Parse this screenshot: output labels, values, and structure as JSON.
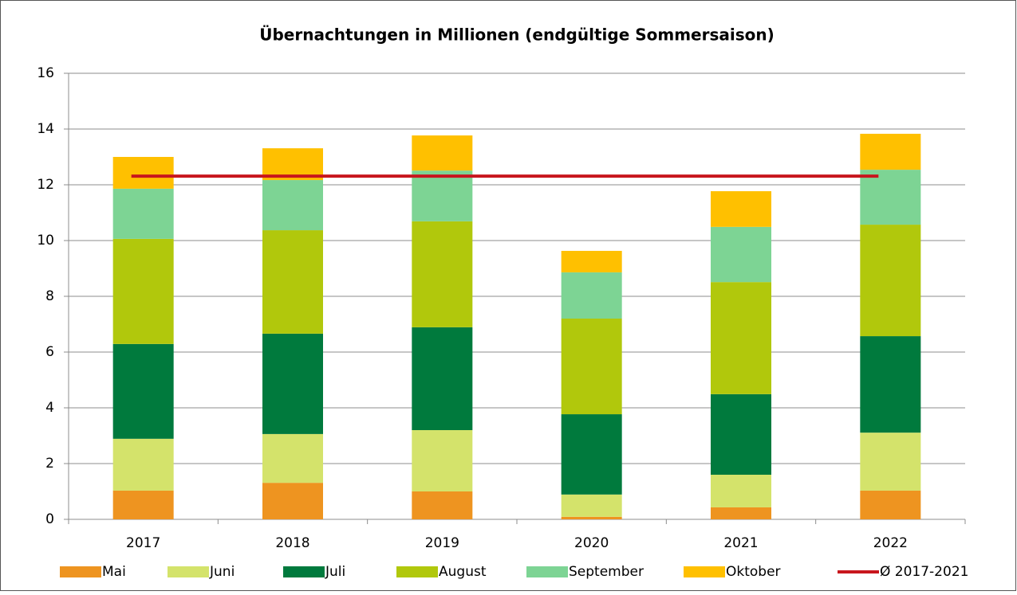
{
  "chart_data": {
    "type": "bar",
    "stacked": true,
    "title": "Übernachtungen in Millionen (endgültige Sommersaison)",
    "categories": [
      "2017",
      "2018",
      "2019",
      "2020",
      "2021",
      "2022"
    ],
    "series": [
      {
        "name": "Mai",
        "color": "#ee9420",
        "values": [
          1.03,
          1.31,
          1.0,
          0.09,
          0.43,
          1.03
        ]
      },
      {
        "name": "Juni",
        "color": "#d4e36b",
        "values": [
          1.86,
          1.75,
          2.2,
          0.8,
          1.17,
          2.08
        ]
      },
      {
        "name": "Juli",
        "color": "#007a3d",
        "values": [
          3.4,
          3.6,
          3.69,
          2.88,
          2.89,
          3.46
        ]
      },
      {
        "name": "August",
        "color": "#b1c80c",
        "values": [
          3.77,
          3.71,
          3.8,
          3.43,
          4.02,
          4.0
        ]
      },
      {
        "name": "September",
        "color": "#7dd494",
        "values": [
          1.8,
          1.8,
          1.82,
          1.66,
          1.98,
          1.97
        ]
      },
      {
        "name": "Oktober",
        "color": "#ffc000",
        "values": [
          1.14,
          1.14,
          1.26,
          0.77,
          1.28,
          1.29
        ]
      },
      {
        "name": "Ø 2017-2021",
        "type": "line",
        "color": "#c8161d",
        "values": [
          12.31,
          12.31,
          12.31,
          12.31,
          12.31,
          12.31
        ]
      }
    ],
    "ylim": [
      0,
      16
    ],
    "yticks": [
      0,
      2,
      4,
      6,
      8,
      10,
      12,
      14,
      16
    ],
    "grid": true,
    "legend": "bottom"
  }
}
